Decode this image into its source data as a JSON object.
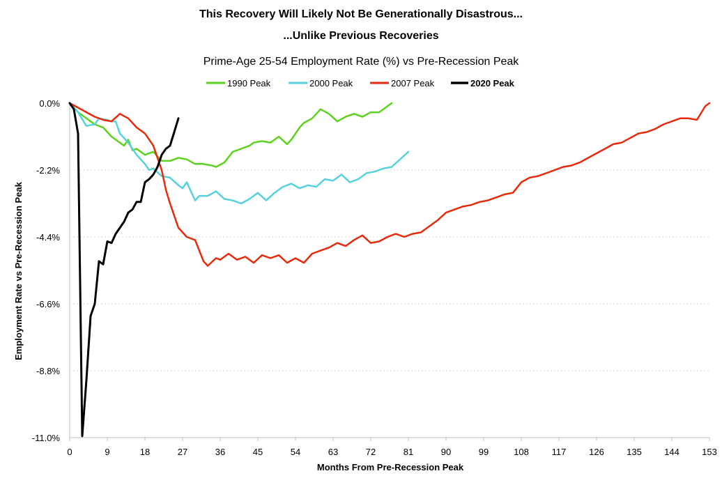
{
  "chart_data": {
    "type": "line",
    "title": "This Recovery Will Likely Not Be Generationally Disastrous...",
    "title_line2": "...Unlike Previous Recoveries",
    "subtitle": "Prime-Age 25-54 Employment Rate (%) vs  Pre-Recession Peak",
    "xlabel": "Months From Pre-Recession Peak",
    "ylabel": "Employment Rate vs Pre-Recession Peak",
    "xlim": [
      0,
      153
    ],
    "ylim": [
      -11.0,
      0.0
    ],
    "x_ticks": [
      0,
      9,
      18,
      27,
      36,
      45,
      54,
      63,
      72,
      81,
      90,
      99,
      108,
      117,
      126,
      135,
      144,
      153
    ],
    "y_ticks": [
      {
        "value": 0.0,
        "label": "0.0%"
      },
      {
        "value": -2.2,
        "label": "-2.2%"
      },
      {
        "value": -4.4,
        "label": "-4.4%"
      },
      {
        "value": -6.6,
        "label": "-6.6%"
      },
      {
        "value": -8.8,
        "label": "-8.8%"
      },
      {
        "value": -11.0,
        "label": "-11.0%"
      }
    ],
    "grid": "horizontal-dotted",
    "legend_position": "top",
    "series": [
      {
        "name": "1990 Peak",
        "color": "#5cd21e",
        "width": 2.5,
        "bold_label": false,
        "x": [
          0,
          2,
          4,
          6,
          8,
          10,
          12,
          13,
          14,
          15,
          16,
          18,
          20,
          22,
          24,
          26,
          28,
          30,
          32,
          34,
          35,
          37,
          39,
          41,
          43,
          44,
          46,
          48,
          50,
          52,
          53,
          55,
          56,
          58,
          60,
          62,
          64,
          66,
          68,
          70,
          72,
          74,
          76,
          77
        ],
        "values": [
          0.0,
          -0.3,
          -0.5,
          -0.7,
          -0.8,
          -1.1,
          -1.3,
          -1.4,
          -1.2,
          -1.55,
          -1.5,
          -1.7,
          -1.6,
          -1.9,
          -1.9,
          -1.8,
          -1.85,
          -2.0,
          -2.0,
          -2.05,
          -2.1,
          -1.95,
          -1.6,
          -1.5,
          -1.4,
          -1.3,
          -1.25,
          -1.3,
          -1.1,
          -1.35,
          -1.2,
          -0.8,
          -0.65,
          -0.5,
          -0.2,
          -0.35,
          -0.6,
          -0.45,
          -0.35,
          -0.45,
          -0.3,
          -0.3,
          -0.1,
          0.0
        ]
      },
      {
        "name": "2000 Peak",
        "color": "#56d1de",
        "width": 2.5,
        "bold_label": false,
        "x": [
          0,
          2,
          4,
          6,
          7,
          9,
          10,
          11,
          12,
          14,
          16,
          18,
          19,
          20,
          22,
          24,
          26,
          27,
          28,
          30,
          31,
          33,
          35,
          37,
          39,
          41,
          43,
          45,
          47,
          49,
          51,
          53,
          55,
          57,
          59,
          61,
          63,
          65,
          67,
          69,
          71,
          73,
          75,
          77,
          79,
          81
        ],
        "values": [
          0.0,
          -0.3,
          -0.75,
          -0.7,
          -0.5,
          -0.55,
          -0.6,
          -0.6,
          -1.0,
          -1.3,
          -1.7,
          -2.0,
          -2.2,
          -2.15,
          -2.4,
          -2.45,
          -2.7,
          -2.8,
          -2.6,
          -3.2,
          -3.05,
          -3.05,
          -2.9,
          -3.15,
          -3.2,
          -3.3,
          -3.15,
          -2.95,
          -3.2,
          -2.95,
          -2.75,
          -2.65,
          -2.8,
          -2.7,
          -2.75,
          -2.5,
          -2.55,
          -2.35,
          -2.6,
          -2.5,
          -2.3,
          -2.25,
          -2.15,
          -2.1,
          -1.85,
          -1.6
        ]
      },
      {
        "name": "2007 Peak",
        "color": "#e8290b",
        "width": 2.5,
        "bold_label": false,
        "x": [
          0,
          2,
          4,
          6,
          8,
          10,
          12,
          14,
          16,
          18,
          20,
          22,
          23,
          24,
          26,
          28,
          30,
          32,
          33,
          35,
          36,
          38,
          40,
          42,
          44,
          46,
          48,
          50,
          52,
          54,
          56,
          58,
          60,
          62,
          64,
          66,
          68,
          70,
          72,
          74,
          76,
          78,
          80,
          82,
          84,
          86,
          88,
          90,
          92,
          94,
          96,
          98,
          100,
          102,
          104,
          106,
          108,
          110,
          112,
          114,
          116,
          118,
          120,
          122,
          124,
          126,
          128,
          130,
          132,
          134,
          136,
          138,
          140,
          142,
          144,
          146,
          148,
          150,
          152,
          153
        ],
        "values": [
          0.0,
          -0.15,
          -0.3,
          -0.45,
          -0.55,
          -0.6,
          -0.35,
          -0.5,
          -0.8,
          -1.0,
          -1.4,
          -2.2,
          -2.85,
          -3.3,
          -4.1,
          -4.4,
          -4.5,
          -5.2,
          -5.35,
          -5.1,
          -5.15,
          -4.95,
          -5.15,
          -5.05,
          -5.25,
          -5.0,
          -5.1,
          -5.0,
          -5.25,
          -5.1,
          -5.25,
          -4.95,
          -4.85,
          -4.75,
          -4.6,
          -4.7,
          -4.5,
          -4.35,
          -4.6,
          -4.55,
          -4.4,
          -4.3,
          -4.4,
          -4.3,
          -4.25,
          -4.05,
          -3.85,
          -3.6,
          -3.5,
          -3.4,
          -3.35,
          -3.25,
          -3.2,
          -3.1,
          -3.0,
          -2.95,
          -2.6,
          -2.45,
          -2.4,
          -2.3,
          -2.2,
          -2.1,
          -2.05,
          -1.95,
          -1.8,
          -1.65,
          -1.5,
          -1.35,
          -1.3,
          -1.15,
          -1.0,
          -0.95,
          -0.85,
          -0.7,
          -0.6,
          -0.5,
          -0.5,
          -0.55,
          -0.1,
          0.0
        ]
      },
      {
        "name": "2020 Peak",
        "color": "#000000",
        "width": 3,
        "bold_label": true,
        "x": [
          0,
          1,
          2,
          3,
          4,
          5,
          6,
          7,
          8,
          9,
          10,
          11,
          12,
          13,
          14,
          15,
          16,
          17,
          18,
          19,
          20,
          21,
          22,
          23,
          24,
          25,
          26
        ],
        "values": [
          0.0,
          -0.2,
          -1.0,
          -10.95,
          -9.1,
          -7.0,
          -6.6,
          -5.2,
          -5.3,
          -4.55,
          -4.6,
          -4.3,
          -4.1,
          -3.9,
          -3.6,
          -3.5,
          -3.25,
          -3.25,
          -2.6,
          -2.5,
          -2.35,
          -2.1,
          -1.7,
          -1.5,
          -1.4,
          -0.95,
          -0.5
        ]
      }
    ]
  }
}
